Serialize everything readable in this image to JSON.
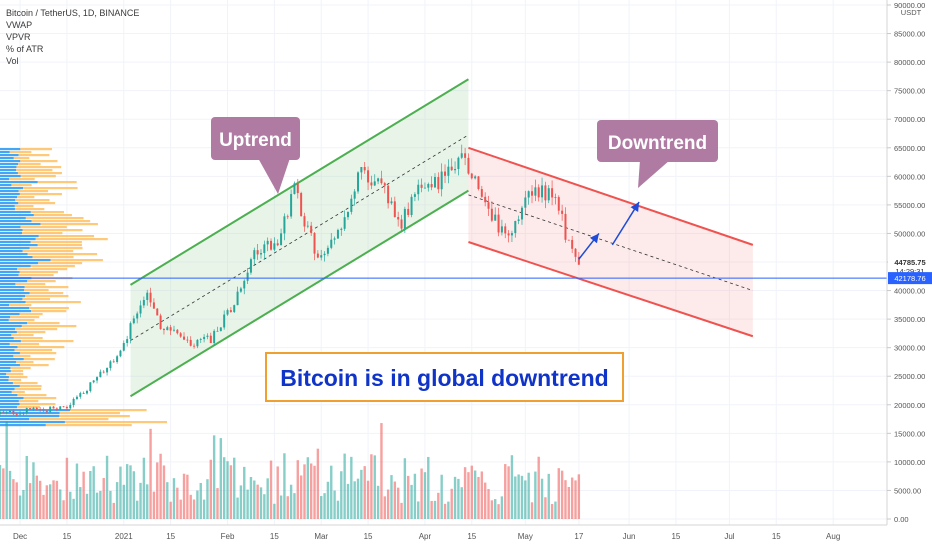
{
  "symbol": {
    "title": "Bitcoin / TetherUS, 1D, BINANCE",
    "indicators": [
      "VWAP",
      "VPVR",
      "% of ATR",
      "Vol"
    ]
  },
  "annotations": {
    "uptrend_label": "Uptrend",
    "downtrend_label": "Downtrend",
    "headline": "Bitcoin is in global downtrend"
  },
  "price_axis": {
    "currency": "USDT",
    "ticks": [
      "90000.00",
      "85000.00",
      "80000.00",
      "75000.00",
      "70000.00",
      "65000.00",
      "60000.00",
      "55000.00",
      "50000.00",
      "45000.00",
      "40000.00",
      "35000.00",
      "30000.00",
      "25000.00",
      "20000.00",
      "15000.00",
      "10000.00",
      "5000.00",
      "0.00"
    ],
    "last_price": "44785.75",
    "countdown": "14:29:31",
    "cursor_price": "42178.76"
  },
  "time_axis": {
    "ticks": [
      "Dec",
      "15",
      "2021",
      "15",
      "Feb",
      "15",
      "Mar",
      "15",
      "Apr",
      "15",
      "May",
      "17",
      "Jun",
      "15",
      "Jul",
      "15",
      "Aug"
    ]
  },
  "colors": {
    "up": "#26a69a",
    "down": "#ef5350",
    "uptrend_channel": "#4caf50",
    "downtrend_channel": "#ef5350",
    "label_bg": "#b07ba3",
    "headline_text": "#1034c8",
    "headline_border": "#f0a030",
    "cursor_line": "#2962ff",
    "price_tag": "#26a69a",
    "vpvr_blue": "#2196f3",
    "vpvr_yellow": "#ffb74d"
  },
  "chart_data": {
    "type": "candlestick",
    "title": "Bitcoin / TetherUS, 1D, BINANCE",
    "x_range": [
      "2020-11-25",
      "2021-08-15"
    ],
    "y_range": [
      0,
      90000
    ],
    "price_series": [
      {
        "date": "2020-11-25",
        "price": 18400
      },
      {
        "date": "2020-12-05",
        "price": 19100
      },
      {
        "date": "2020-12-15",
        "price": 19400
      },
      {
        "date": "2020-12-22",
        "price": 23500
      },
      {
        "date": "2020-12-31",
        "price": 29000
      },
      {
        "date": "2021-01-03",
        "price": 33500
      },
      {
        "date": "2021-01-08",
        "price": 40500
      },
      {
        "date": "2021-01-12",
        "price": 34000
      },
      {
        "date": "2021-01-21",
        "price": 30500
      },
      {
        "date": "2021-01-27",
        "price": 31500
      },
      {
        "date": "2021-02-03",
        "price": 37500
      },
      {
        "date": "2021-02-09",
        "price": 46500
      },
      {
        "date": "2021-02-16",
        "price": 49000
      },
      {
        "date": "2021-02-21",
        "price": 57500
      },
      {
        "date": "2021-02-28",
        "price": 45500
      },
      {
        "date": "2021-03-05",
        "price": 48500
      },
      {
        "date": "2021-03-13",
        "price": 61000
      },
      {
        "date": "2021-03-19",
        "price": 58000
      },
      {
        "date": "2021-03-25",
        "price": 52000
      },
      {
        "date": "2021-03-31",
        "price": 58800
      },
      {
        "date": "2021-04-05",
        "price": 59000
      },
      {
        "date": "2021-04-13",
        "price": 63500
      },
      {
        "date": "2021-04-18",
        "price": 56000
      },
      {
        "date": "2021-04-25",
        "price": 49000
      },
      {
        "date": "2021-05-02",
        "price": 56500
      },
      {
        "date": "2021-05-10",
        "price": 57500
      },
      {
        "date": "2021-05-13",
        "price": 49500
      },
      {
        "date": "2021-05-17",
        "price": 44500
      }
    ],
    "volume_axis_ticks": [
      0,
      5000,
      10000,
      15000
    ],
    "uptrend_channel": {
      "upper": [
        {
          "date": "2021-01-03",
          "price": 41000
        },
        {
          "date": "2021-04-14",
          "price": 77000
        }
      ],
      "lower": [
        {
          "date": "2021-01-03",
          "price": 21500
        },
        {
          "date": "2021-04-14",
          "price": 57500
        }
      ]
    },
    "downtrend_channel": {
      "upper": [
        {
          "date": "2021-04-14",
          "price": 65000
        },
        {
          "date": "2021-07-08",
          "price": 48000
        }
      ],
      "lower": [
        {
          "date": "2021-04-14",
          "price": 48500
        },
        {
          "date": "2021-07-08",
          "price": 32000
        }
      ]
    },
    "horizontal_line": 42178.76,
    "last_price": 44785.75
  }
}
